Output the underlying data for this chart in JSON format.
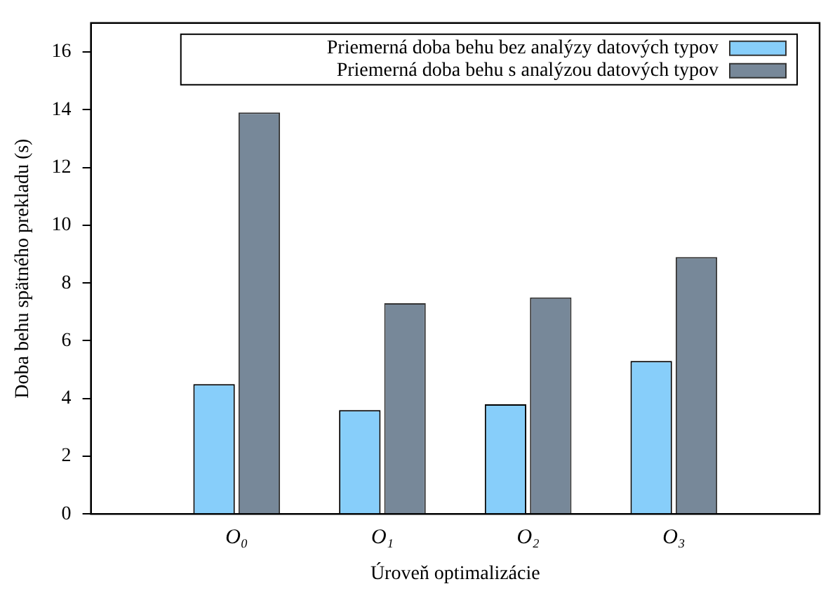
{
  "chart_data": {
    "type": "bar",
    "xlabel": "Úroveň optimalizácie",
    "ylabel": "Doba behu spätného prekladu (s)",
    "categories": [
      "O₀",
      "O₁",
      "O₂",
      "O₃"
    ],
    "series": [
      {
        "name": "Priemerná doba behu bez analýzy datových typov",
        "color": "#87cefa",
        "values": [
          4.5,
          3.6,
          3.8,
          5.3
        ]
      },
      {
        "name": "Priemerná doba behu s analýzou datových typov",
        "color": "#778899",
        "values": [
          13.9,
          7.3,
          7.5,
          8.9
        ]
      }
    ],
    "ylim": [
      0,
      17
    ],
    "yticks": [
      0,
      2,
      4,
      6,
      8,
      10,
      12,
      14,
      16
    ],
    "grid": false,
    "legend": "top right"
  }
}
